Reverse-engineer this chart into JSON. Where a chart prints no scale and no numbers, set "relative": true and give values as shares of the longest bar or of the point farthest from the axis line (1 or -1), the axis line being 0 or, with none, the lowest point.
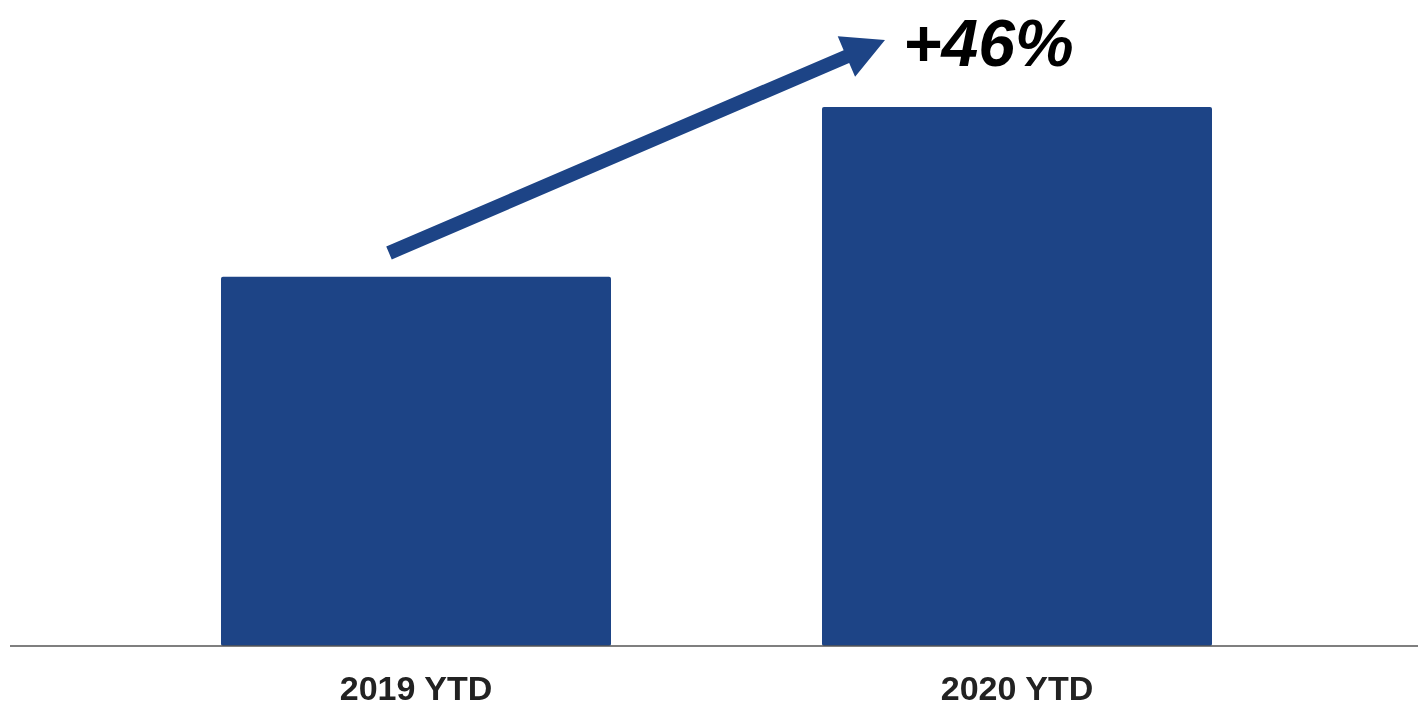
{
  "chart_data": {
    "type": "bar",
    "relative": true,
    "categories": [
      "2019 YTD",
      "2020 YTD"
    ],
    "values": [
      0.685,
      1
    ],
    "color": "#1d4486",
    "annotations": [
      "+46%"
    ]
  }
}
